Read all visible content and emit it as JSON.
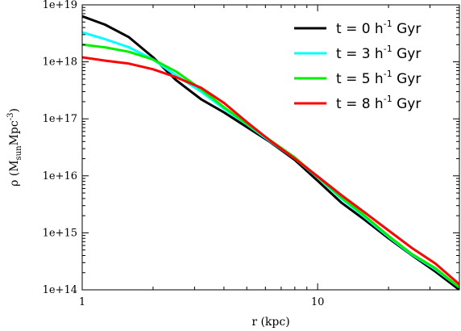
{
  "chart_data": {
    "type": "line",
    "title": "",
    "xlabel": "r (kpc)",
    "ylabel": {
      "prefix": "ρ (M",
      "sub": "sun",
      "mid": "Mpc",
      "sup": "-3",
      "suffix": ")"
    },
    "xscale": "log",
    "yscale": "log",
    "xlim": [
      1,
      40
    ],
    "ylim": [
      100000000000000.0,
      1e+19
    ],
    "x_ticks": [
      {
        "value": 1,
        "label": "1"
      },
      {
        "value": 10,
        "label": "10"
      }
    ],
    "y_ticks": [
      {
        "value": 100000000000000.0,
        "label": "1e+14"
      },
      {
        "value": 1000000000000000.0,
        "label": "1e+15"
      },
      {
        "value": 1e+16,
        "label": "1e+16"
      },
      {
        "value": 1e+17,
        "label": "1e+17"
      },
      {
        "value": 1e+18,
        "label": "1e+18"
      },
      {
        "value": 1e+19,
        "label": "1e+19"
      }
    ],
    "grid": false,
    "legend_position": "top-right",
    "series": [
      {
        "name": "t = 0 h-1 Gyr",
        "label": {
          "pre": "t = 0 h",
          "sup": "-1",
          "post": " Gyr"
        },
        "color": "#000000",
        "x": [
          1.0,
          1.25,
          1.58,
          2.0,
          2.5,
          3.2,
          4.0,
          5.0,
          6.3,
          8.0,
          10.0,
          12.6,
          15.8,
          20.0,
          25.0,
          31.6,
          40.0
        ],
        "y": [
          6.3e+18,
          4.5e+18,
          2.7e+18,
          1.2e+18,
          4.8e+17,
          2.2e+17,
          1.3e+17,
          7.2e+16,
          3.9e+16,
          1.9e+16,
          8200000000000000.0,
          3400000000000000.0,
          1700000000000000.0,
          800000000000000.0,
          410000000000000.0,
          210000000000000.0,
          100000000000000.0
        ]
      },
      {
        "name": "t = 3 h-1 Gyr",
        "label": {
          "pre": "t = 3 h",
          "sup": "-1",
          "post": " Gyr"
        },
        "color": "#00ffff",
        "x": [
          1.0,
          1.25,
          1.58,
          2.0,
          2.5,
          3.2,
          4.0,
          5.0,
          6.3,
          8.0,
          10.0,
          12.6,
          15.8,
          20.0,
          25.0,
          31.6,
          40.0
        ],
        "y": [
          3.3e+18,
          2.5e+18,
          1.8e+18,
          1.1e+18,
          5.8e+17,
          3e+17,
          1.5e+17,
          8e+16,
          4e+16,
          2e+16,
          9500000000000000.0,
          4000000000000000.0,
          1900000000000000.0,
          850000000000000.0,
          420000000000000.0,
          230000000000000.0,
          110000000000000.0
        ]
      },
      {
        "name": "t = 5 h-1 Gyr",
        "label": {
          "pre": "t = 5 h",
          "sup": "-1",
          "post": " Gyr"
        },
        "color": "#00ee00",
        "x": [
          1.0,
          1.25,
          1.58,
          2.0,
          2.5,
          3.2,
          4.0,
          5.0,
          6.3,
          8.0,
          10.0,
          12.6,
          15.8,
          20.0,
          25.0,
          31.6,
          40.0
        ],
        "y": [
          2e+18,
          1.8e+18,
          1.5e+18,
          1.1e+18,
          6.8e+17,
          3.3e+17,
          1.6e+17,
          8.2e+16,
          4.2e+16,
          2.1e+16,
          9600000000000000.0,
          4200000000000000.0,
          2000000000000000.0,
          880000000000000.0,
          430000000000000.0,
          240000000000000.0,
          110000000000000.0
        ]
      },
      {
        "name": "t = 8 h-1 Gyr",
        "label": {
          "pre": "t = 8 h",
          "sup": "-1",
          "post": " Gyr"
        },
        "color": "#ff0000",
        "x": [
          1.0,
          1.25,
          1.58,
          2.0,
          2.5,
          3.2,
          4.0,
          5.0,
          6.3,
          8.0,
          10.0,
          12.6,
          15.8,
          20.0,
          25.0,
          31.6,
          40.0
        ],
        "y": [
          1.2e+18,
          1.05e+18,
          9.3e+17,
          7.4e+17,
          5.4e+17,
          3.5e+17,
          1.9e+17,
          8.8e+16,
          4.1e+16,
          2e+16,
          9800000000000000.0,
          4600000000000000.0,
          2300000000000000.0,
          1100000000000000.0,
          550000000000000.0,
          290000000000000.0,
          125000000000000.0
        ]
      }
    ]
  }
}
